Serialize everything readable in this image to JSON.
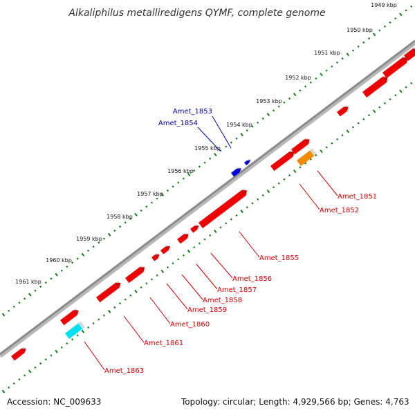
{
  "title": "Alkaliphilus metalliredigens QYMF, complete genome",
  "footer": {
    "accession": "Accession: NC_009633",
    "summary": "Topology: circular; Length: 4,929,566 bp; Genes: 4,763"
  },
  "colors": {
    "backbone": "#8a8a8a",
    "tick": "#1a7a1a",
    "red": "#ee0000",
    "blue": "#0000dd",
    "orange": "#f08a00",
    "cyan": "#00e0f0",
    "label_red": "#cc0000",
    "label_blue": "#0000aa"
  },
  "kbp_labels": [
    "1949 kbp",
    "1950 kbp",
    "1951 kbp",
    "1952 kbp",
    "1953 kbp",
    "1954 kbp",
    "1955 kbp",
    "1956 kbp",
    "1957 kbp",
    "1958 kbp",
    "1959 kbp",
    "1960 kbp",
    "1961 kbp"
  ],
  "genes": [
    {
      "name": "Amet_1853",
      "color": "blue",
      "label_color": "label_blue"
    },
    {
      "name": "Amet_1854",
      "color": "blue",
      "label_color": "label_blue"
    },
    {
      "name": "Amet_1851",
      "color": "orange",
      "label_color": "label_red"
    },
    {
      "name": "Amet_1852",
      "color": "red",
      "label_color": "label_red"
    },
    {
      "name": "Amet_1855",
      "color": "red",
      "label_color": "label_red"
    },
    {
      "name": "Amet_1856",
      "color": "red",
      "label_color": "label_red"
    },
    {
      "name": "Amet_1857",
      "color": "red",
      "label_color": "label_red"
    },
    {
      "name": "Amet_1858",
      "color": "red",
      "label_color": "label_red"
    },
    {
      "name": "Amet_1859",
      "color": "red",
      "label_color": "label_red"
    },
    {
      "name": "Amet_1860",
      "color": "red",
      "label_color": "label_red"
    },
    {
      "name": "Amet_1861",
      "color": "red",
      "label_color": "label_red"
    },
    {
      "name": "Amet_1863",
      "color": "cyan",
      "label_color": "label_red"
    }
  ]
}
